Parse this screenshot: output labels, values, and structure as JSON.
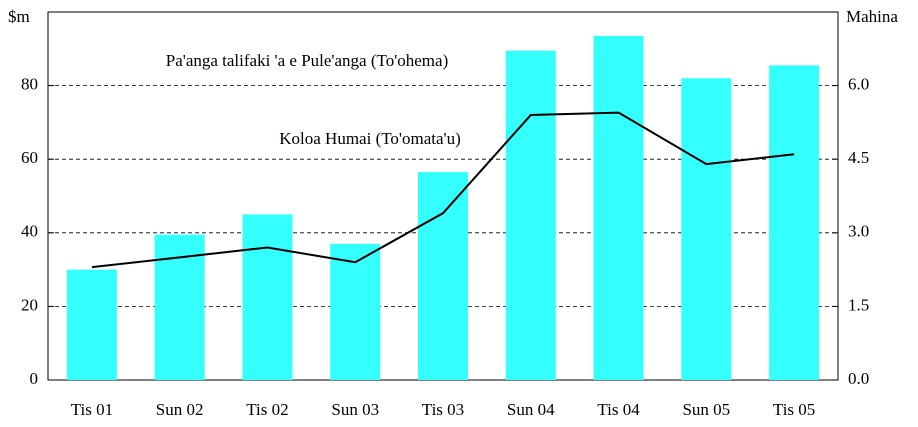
{
  "chart_data": {
    "type": "bar_line",
    "y_label": "$m",
    "y2_label": "Mahina",
    "categories": [
      "Tis 01",
      "Sun 02",
      "Tis 02",
      "Sun 03",
      "Tis 03",
      "Sun 04",
      "Tis 04",
      "Sun 05",
      "Tis 05"
    ],
    "series": [
      {
        "name": "Pa'anga talifaki 'a e Pule'anga (To'ohema)",
        "type": "bar",
        "color": "#33ffff",
        "values": [
          30,
          39.5,
          45,
          37,
          56.5,
          89.5,
          93.5,
          82,
          85.5
        ]
      },
      {
        "name": "Koloa Humai (To'omata'u)",
        "type": "line",
        "axis": "y2",
        "color": "#000000",
        "values": [
          2.3,
          2.5,
          2.7,
          2.4,
          3.4,
          5.4,
          5.45,
          4.4,
          4.6
        ]
      }
    ],
    "ylim": [
      0,
      100
    ],
    "yticks": [
      0,
      20,
      40,
      60,
      80
    ],
    "y2lim": [
      0,
      7.5
    ],
    "y2ticks": [
      {
        "value": 0,
        "label": "0.0"
      },
      1.5,
      {
        "value": 3,
        "label": "3.0"
      },
      4.5,
      {
        "value": 6,
        "label": "6.0"
      }
    ],
    "grid": true
  }
}
